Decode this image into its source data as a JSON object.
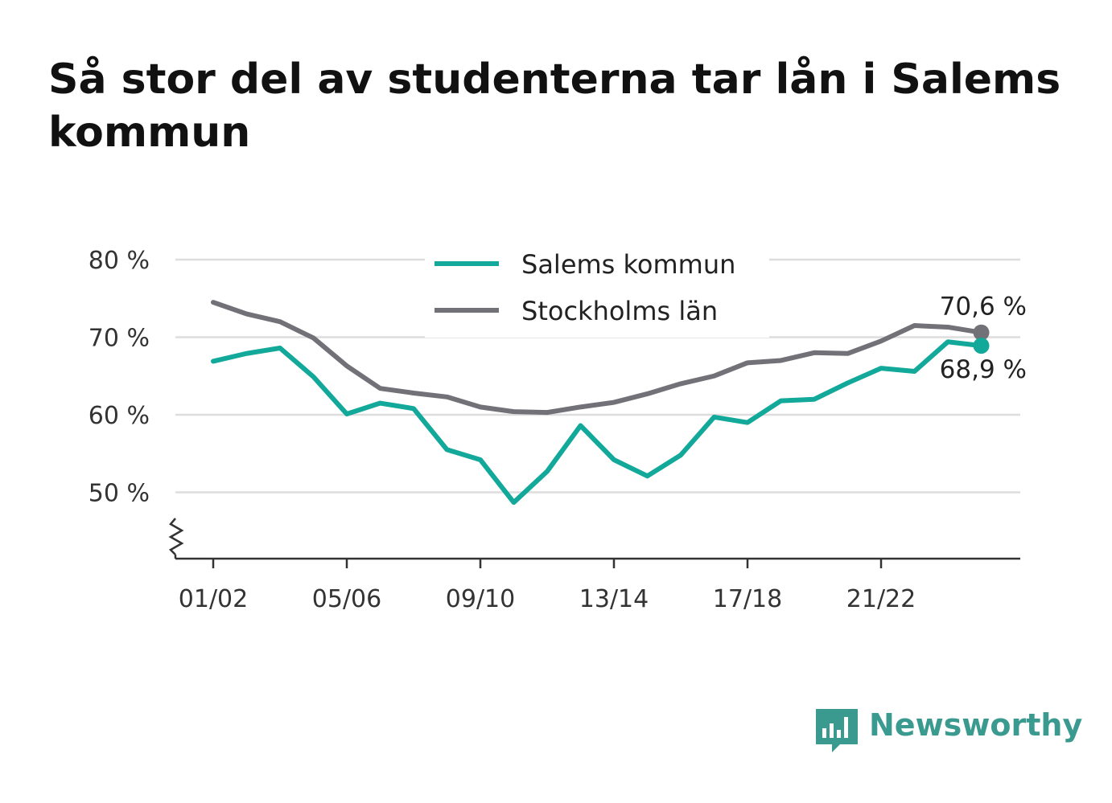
{
  "title": "Så stor del av studenterna tar lån i Salems kommun",
  "brand": {
    "name": "Newsworthy",
    "icon": "newsworthy-logo-icon",
    "color": "#3a9a8f"
  },
  "colors": {
    "salem": "#12a89a",
    "stockholm": "#727178",
    "grid": "#dddddd",
    "axis": "#333333"
  },
  "chart_data": {
    "type": "line",
    "title": "Så stor del av studenterna tar lån i Salems kommun",
    "xlabel": "",
    "ylabel": "",
    "x": [
      "01/02",
      "02/03",
      "03/04",
      "04/05",
      "05/06",
      "06/07",
      "07/08",
      "08/09",
      "09/10",
      "10/11",
      "11/12",
      "12/13",
      "13/14",
      "14/15",
      "15/16",
      "16/17",
      "17/18",
      "18/19",
      "19/20",
      "20/21",
      "21/22",
      "22/23",
      "23/24",
      "24/25"
    ],
    "x_tick_labels": [
      "01/02",
      "05/06",
      "09/10",
      "13/14",
      "17/18",
      "21/22"
    ],
    "y_tick_labels": [
      "80 %",
      "70 %",
      "60 %",
      "50 %"
    ],
    "ylim": [
      41,
      80
    ],
    "y_ticks": [
      80,
      70,
      60,
      50
    ],
    "axis_break": true,
    "grid": true,
    "legend_position": "top-center",
    "series": [
      {
        "name": "Salems kommun",
        "color": "#12a89a",
        "values": [
          66.9,
          67.9,
          68.6,
          64.9,
          60.1,
          61.5,
          60.8,
          55.5,
          54.2,
          48.7,
          52.7,
          58.6,
          54.2,
          52.1,
          54.8,
          59.7,
          59.0,
          61.8,
          62.0,
          64.1,
          66.0,
          65.6,
          69.4,
          68.9
        ],
        "end_label": "68,9 %"
      },
      {
        "name": "Stockholms län",
        "color": "#727178",
        "values": [
          74.5,
          73.0,
          72.0,
          69.9,
          66.3,
          63.4,
          62.8,
          62.3,
          61.0,
          60.4,
          60.3,
          61.0,
          61.6,
          62.7,
          64.0,
          65.0,
          66.7,
          67.0,
          68.0,
          67.9,
          69.5,
          71.5,
          71.3,
          70.6
        ],
        "end_label": "70,6 %"
      }
    ]
  }
}
